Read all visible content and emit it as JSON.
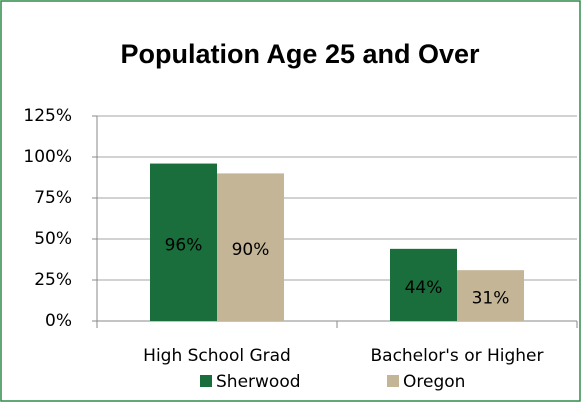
{
  "chart_data": {
    "type": "bar",
    "title": "Population Age 25 and Over",
    "categories": [
      "High School Grad",
      "Bachelor's or Higher"
    ],
    "series": [
      {
        "name": "Sherwood",
        "color": "#1a6e3c",
        "values": [
          96,
          44
        ],
        "value_labels": [
          "96%",
          "44%"
        ]
      },
      {
        "name": "Oregon",
        "color": "#c4b597",
        "values": [
          90,
          31
        ],
        "value_labels": [
          "90%",
          "31%"
        ]
      }
    ],
    "ylim": [
      0,
      125
    ],
    "yticks": [
      {
        "value": 0,
        "label": "0%"
      },
      {
        "value": 25,
        "label": "25%"
      },
      {
        "value": 50,
        "label": "50%"
      },
      {
        "value": 75,
        "label": "75%"
      },
      {
        "value": 100,
        "label": "100%"
      },
      {
        "value": 125,
        "label": "125%"
      }
    ],
    "grid": true,
    "legend": "bottom"
  }
}
